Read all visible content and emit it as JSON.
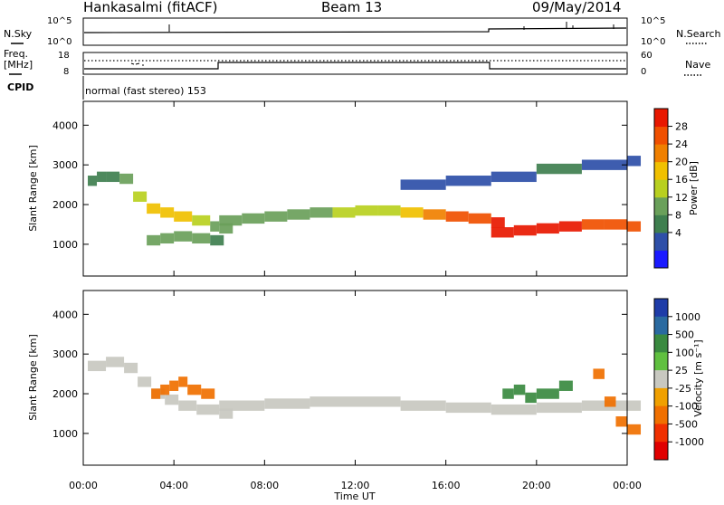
{
  "header": {
    "station": "Hankasalmi (fitACF)",
    "beam": "Beam 13",
    "date": "09/May/2014"
  },
  "sky_panel": {
    "left_label": "N.Sky",
    "right_label": "N.Search",
    "left_ticks": [
      "10^5",
      "10^0"
    ],
    "right_ticks": [
      "10^5",
      "10^0"
    ]
  },
  "freq_panel": {
    "left_label_line1": "Freq.",
    "left_label_line2": "[MHz]",
    "right_label": "Nave",
    "left_ticks": [
      "18",
      "8"
    ],
    "right_ticks": [
      "60",
      "0"
    ]
  },
  "cpid": {
    "label": "CPID",
    "value": "normal (fast stereo) 153"
  },
  "x_axis": {
    "title": "Time UT",
    "ticks": [
      "00:00",
      "04:00",
      "08:00",
      "12:00",
      "16:00",
      "20:00",
      "00:00"
    ]
  },
  "power_colorbar": {
    "title": "Power [dB]",
    "ticks": [
      "28",
      "24",
      "20",
      "16",
      "12",
      "8",
      "4"
    ],
    "colors": [
      "#1a1aff",
      "#2e4fa8",
      "#3f7f4f",
      "#6aa05a",
      "#b8d020",
      "#f0c000",
      "#f08000",
      "#f05000",
      "#e81800"
    ]
  },
  "velocity_colorbar": {
    "title": "Velocity [m s⁻¹]",
    "ticks": [
      "1000",
      "500",
      "100",
      "25",
      "-25",
      "-100",
      "-500",
      "-1000"
    ],
    "colors": [
      "#1e3ca8",
      "#2a6aa0",
      "#3a8a40",
      "#60c040",
      "#c8c8c0",
      "#f0a000",
      "#f07000",
      "#f03000",
      "#e00000"
    ]
  },
  "chart_data": [
    {
      "type": "heatmap",
      "quantity": "Power",
      "ylabel": "Slant Range [km]",
      "xlabel": "Time UT",
      "ylim": [
        200,
        4600
      ],
      "yticks": [
        1000,
        2000,
        3000,
        4000
      ],
      "xlim_hours": [
        0,
        24
      ],
      "zlim": [
        0,
        30
      ],
      "series": [
        {
          "x": [
            0.2,
            0.6,
            1.0,
            1.6,
            2.2,
            2.8,
            3.4,
            4.0,
            4.8,
            5.6,
            6.0
          ],
          "y": [
            2600,
            2700,
            2700,
            2650,
            2200,
            1900,
            1800,
            1700,
            1600,
            1450,
            1400
          ],
          "z": [
            8,
            8,
            8,
            10,
            16,
            18,
            18,
            18,
            16,
            12,
            10
          ]
        },
        {
          "x": [
            6.0,
            7.0,
            8.0,
            9.0,
            10.0,
            11.0,
            12.0,
            13.0,
            14.0,
            15.0,
            16.0,
            17.0,
            18.0
          ],
          "y": [
            1600,
            1650,
            1700,
            1750,
            1800,
            1800,
            1850,
            1850,
            1800,
            1750,
            1700,
            1650,
            1550
          ],
          "z": [
            10,
            10,
            12,
            12,
            12,
            14,
            14,
            16,
            18,
            20,
            24,
            26,
            28
          ]
        },
        {
          "x": [
            18.0,
            19.0,
            20.0,
            21.0,
            22.0,
            23.0,
            24.0
          ],
          "y": [
            1300,
            1350,
            1400,
            1450,
            1500,
            1500,
            1450
          ],
          "z": [
            28,
            28,
            28,
            28,
            26,
            26,
            26
          ]
        },
        {
          "x": [
            2.8,
            3.4,
            4.0,
            4.8,
            5.6
          ],
          "y": [
            1100,
            1150,
            1200,
            1150,
            1100
          ],
          "z": [
            12,
            12,
            12,
            10,
            8
          ]
        },
        {
          "x": [
            14.0,
            16.0,
            18.0,
            20.0,
            22.0,
            24.0
          ],
          "y": [
            2500,
            2600,
            2700,
            2900,
            3000,
            3100
          ],
          "z": [
            6,
            6,
            6,
            8,
            6,
            6
          ]
        }
      ]
    },
    {
      "type": "heatmap",
      "quantity": "Velocity",
      "ylabel": "Slant Range [km]",
      "xlabel": "Time UT",
      "ylim": [
        200,
        4600
      ],
      "yticks": [
        1000,
        2000,
        3000,
        4000
      ],
      "xlim_hours": [
        0,
        24
      ],
      "zlim": [
        -1000,
        1000
      ],
      "series": [
        {
          "x": [
            0.2,
            1.0,
            1.8,
            2.4,
            3.0,
            3.6,
            4.2,
            5.0,
            6.0
          ],
          "y": [
            2700,
            2800,
            2650,
            2300,
            2000,
            1850,
            1700,
            1600,
            1500
          ],
          "z": [
            0,
            0,
            0,
            0,
            0,
            0,
            0,
            0,
            0
          ]
        },
        {
          "x": [
            3.0,
            3.4,
            3.8,
            4.2,
            4.6,
            5.2
          ],
          "y": [
            2000,
            2100,
            2200,
            2300,
            2100,
            2000
          ],
          "z": [
            -500,
            -500,
            -500,
            -500,
            -500,
            -300
          ]
        },
        {
          "x": [
            6.0,
            8.0,
            10.0,
            12.0,
            14.0,
            16.0,
            18.0,
            20.0,
            22.0,
            24.0
          ],
          "y": [
            1700,
            1750,
            1800,
            1800,
            1700,
            1650,
            1600,
            1650,
            1700,
            1700
          ],
          "z": [
            0,
            0,
            0,
            0,
            0,
            0,
            0,
            0,
            0,
            0
          ]
        },
        {
          "x": [
            18.5,
            19.0,
            19.5,
            20.0,
            21.0
          ],
          "y": [
            2000,
            2100,
            1900,
            2000,
            2200
          ],
          "z": [
            200,
            300,
            200,
            100,
            200
          ]
        },
        {
          "x": [
            22.5,
            23.0,
            23.5,
            24.0
          ],
          "y": [
            2500,
            1800,
            1300,
            1100
          ],
          "z": [
            -300,
            -400,
            -500,
            -500
          ]
        }
      ]
    }
  ]
}
